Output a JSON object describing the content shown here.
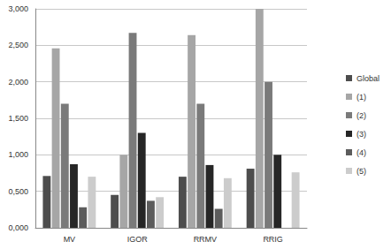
{
  "chart_data": {
    "type": "bar",
    "categories": [
      "MV",
      "IGOR",
      "RRMV",
      "RRIG"
    ],
    "series": [
      {
        "name": "Global",
        "color": "#4d4d4d",
        "values": [
          0.71,
          0.45,
          0.7,
          0.81
        ]
      },
      {
        "name": "(1)",
        "color": "#a6a6a6",
        "values": [
          2.46,
          1.0,
          2.64,
          3.0
        ]
      },
      {
        "name": "(2)",
        "color": "#7a7a7a",
        "values": [
          1.7,
          2.67,
          1.7,
          2.0
        ]
      },
      {
        "name": "(3)",
        "color": "#262626",
        "values": [
          0.87,
          1.3,
          0.86,
          1.0
        ]
      },
      {
        "name": "(4)",
        "color": "#5c5c5c",
        "values": [
          0.28,
          0.37,
          0.26,
          null
        ]
      },
      {
        "name": "(5)",
        "color": "#cccccc",
        "values": [
          0.7,
          0.42,
          0.68,
          0.76
        ]
      }
    ],
    "ylim": [
      0,
      3
    ],
    "yticks": [
      {
        "value": 0,
        "label": "0,000"
      },
      {
        "value": 0.5,
        "label": "0,500"
      },
      {
        "value": 1,
        "label": "1,000"
      },
      {
        "value": 1.5,
        "label": "1,500"
      },
      {
        "value": 2,
        "label": "2,000"
      },
      {
        "value": 2.5,
        "label": "2,500"
      },
      {
        "value": 3,
        "label": "3,000"
      }
    ],
    "grid": true,
    "legend": "right"
  }
}
